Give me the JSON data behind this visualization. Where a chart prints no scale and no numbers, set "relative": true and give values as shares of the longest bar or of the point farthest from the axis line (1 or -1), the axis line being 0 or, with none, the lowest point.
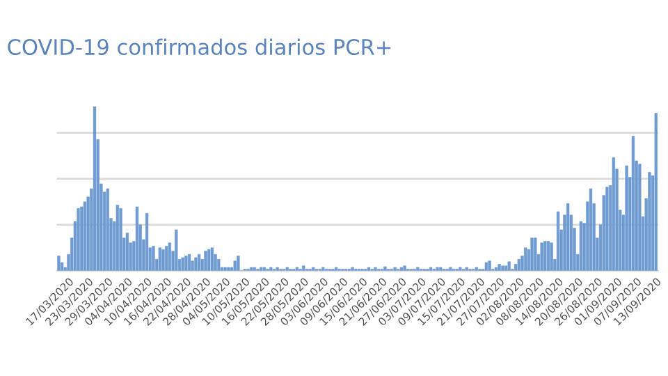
{
  "chart_data": {
    "type": "bar",
    "title": "COVID-19 confirmados diarios PCR+",
    "relative": true,
    "grid": "y",
    "color": "#6f9bd1",
    "categories": [
      null,
      null,
      null,
      "17/03/2020",
      null,
      null,
      null,
      null,
      null,
      "23/03/2020",
      null,
      null,
      null,
      null,
      null,
      "29/03/2020",
      null,
      null,
      null,
      null,
      null,
      "04/04/2020",
      null,
      null,
      null,
      null,
      null,
      "10/04/2020",
      null,
      null,
      null,
      null,
      null,
      "16/04/2020",
      null,
      null,
      null,
      null,
      null,
      "22/04/2020",
      null,
      null,
      null,
      null,
      null,
      "28/04/2020",
      null,
      null,
      null,
      null,
      null,
      "04/05/2020",
      null,
      null,
      null,
      null,
      null,
      "10/05/2020",
      null,
      null,
      null,
      null,
      null,
      "16/05/2020",
      null,
      null,
      null,
      null,
      null,
      "22/05/2020",
      null,
      null,
      null,
      null,
      null,
      "28/05/2020",
      null,
      null,
      null,
      null,
      null,
      "03/06/2020",
      null,
      null,
      null,
      null,
      null,
      "09/06/2020",
      null,
      null,
      null,
      null,
      null,
      "15/06/2020",
      null,
      null,
      null,
      null,
      null,
      "21/06/2020",
      null,
      null,
      null,
      null,
      null,
      "27/06/2020",
      null,
      null,
      null,
      null,
      null,
      "03/07/2020",
      null,
      null,
      null,
      null,
      null,
      "09/07/2020",
      null,
      null,
      null,
      null,
      null,
      "15/07/2020",
      null,
      null,
      null,
      null,
      null,
      "21/07/2020",
      null,
      null,
      null,
      null,
      null,
      "27/07/2020",
      null,
      null,
      null,
      null,
      null,
      "02/08/2020",
      null,
      null,
      null,
      null,
      null,
      "08/08/2020",
      null,
      null,
      null,
      null,
      null,
      "14/08/2020",
      null,
      null,
      null,
      null,
      null,
      "20/08/2020",
      null,
      null,
      null,
      null,
      null,
      "26/08/2020",
      null,
      null,
      null,
      null,
      null,
      "01/09/2020",
      null,
      null,
      null,
      null,
      null,
      "07/09/2020",
      null,
      null,
      null,
      null,
      null,
      "13/09/2020"
    ],
    "values": [
      0.09,
      0.05,
      0.02,
      0.1,
      0.2,
      0.3,
      0.38,
      0.39,
      0.42,
      0.45,
      0.5,
      1.0,
      0.8,
      0.53,
      0.48,
      0.5,
      0.32,
      0.3,
      0.4,
      0.38,
      0.2,
      0.23,
      0.17,
      0.18,
      0.39,
      0.28,
      0.19,
      0.35,
      0.14,
      0.15,
      0.07,
      0.14,
      0.13,
      0.15,
      0.17,
      0.12,
      0.25,
      0.07,
      0.08,
      0.09,
      0.1,
      0.06,
      0.08,
      0.1,
      0.07,
      0.12,
      0.13,
      0.14,
      0.1,
      0.07,
      0.02,
      0.02,
      0.02,
      0.02,
      0.06,
      0.09,
      0,
      0.01,
      0.01,
      0.02,
      0.02,
      0.01,
      0.02,
      0.02,
      0.01,
      0.02,
      0.01,
      0.02,
      0.01,
      0.01,
      0.02,
      0.01,
      0.01,
      0.02,
      0.01,
      0.03,
      0.01,
      0.01,
      0.02,
      0.01,
      0.01,
      0.02,
      0.01,
      0.01,
      0.01,
      0.02,
      0.01,
      0.01,
      0.01,
      0.01,
      0.02,
      0.01,
      0.01,
      0.01,
      0.01,
      0.02,
      0.01,
      0.02,
      0.01,
      0.01,
      0.025,
      0.01,
      0.01,
      0.02,
      0.01,
      0.02,
      0.03,
      0.01,
      0.01,
      0.01,
      0.02,
      0.01,
      0.01,
      0.01,
      0.02,
      0.01,
      0.02,
      0.02,
      0.01,
      0.01,
      0.02,
      0.01,
      0.01,
      0.02,
      0.01,
      0.02,
      0.01,
      0.01,
      0.02,
      0.01,
      0.01,
      0.05,
      0.06,
      0.01,
      0.02,
      0.04,
      0.03,
      0.03,
      0.055,
      0.01,
      0.04,
      0.07,
      0.09,
      0.14,
      0.13,
      0.2,
      0.2,
      0.1,
      0.17,
      0.18,
      0.18,
      0.17,
      0.07,
      0.36,
      0.25,
      0.34,
      0.41,
      0.34,
      0.26,
      0.1,
      0.3,
      0.29,
      0.42,
      0.5,
      0.41,
      0.2,
      0.28,
      0.46,
      0.51,
      0.52,
      0.69,
      0.62,
      0.37,
      0.34,
      0.64,
      0.57,
      0.82,
      0.67,
      0.65,
      0.33,
      0.44,
      0.6,
      0.58,
      0.96
    ]
  }
}
